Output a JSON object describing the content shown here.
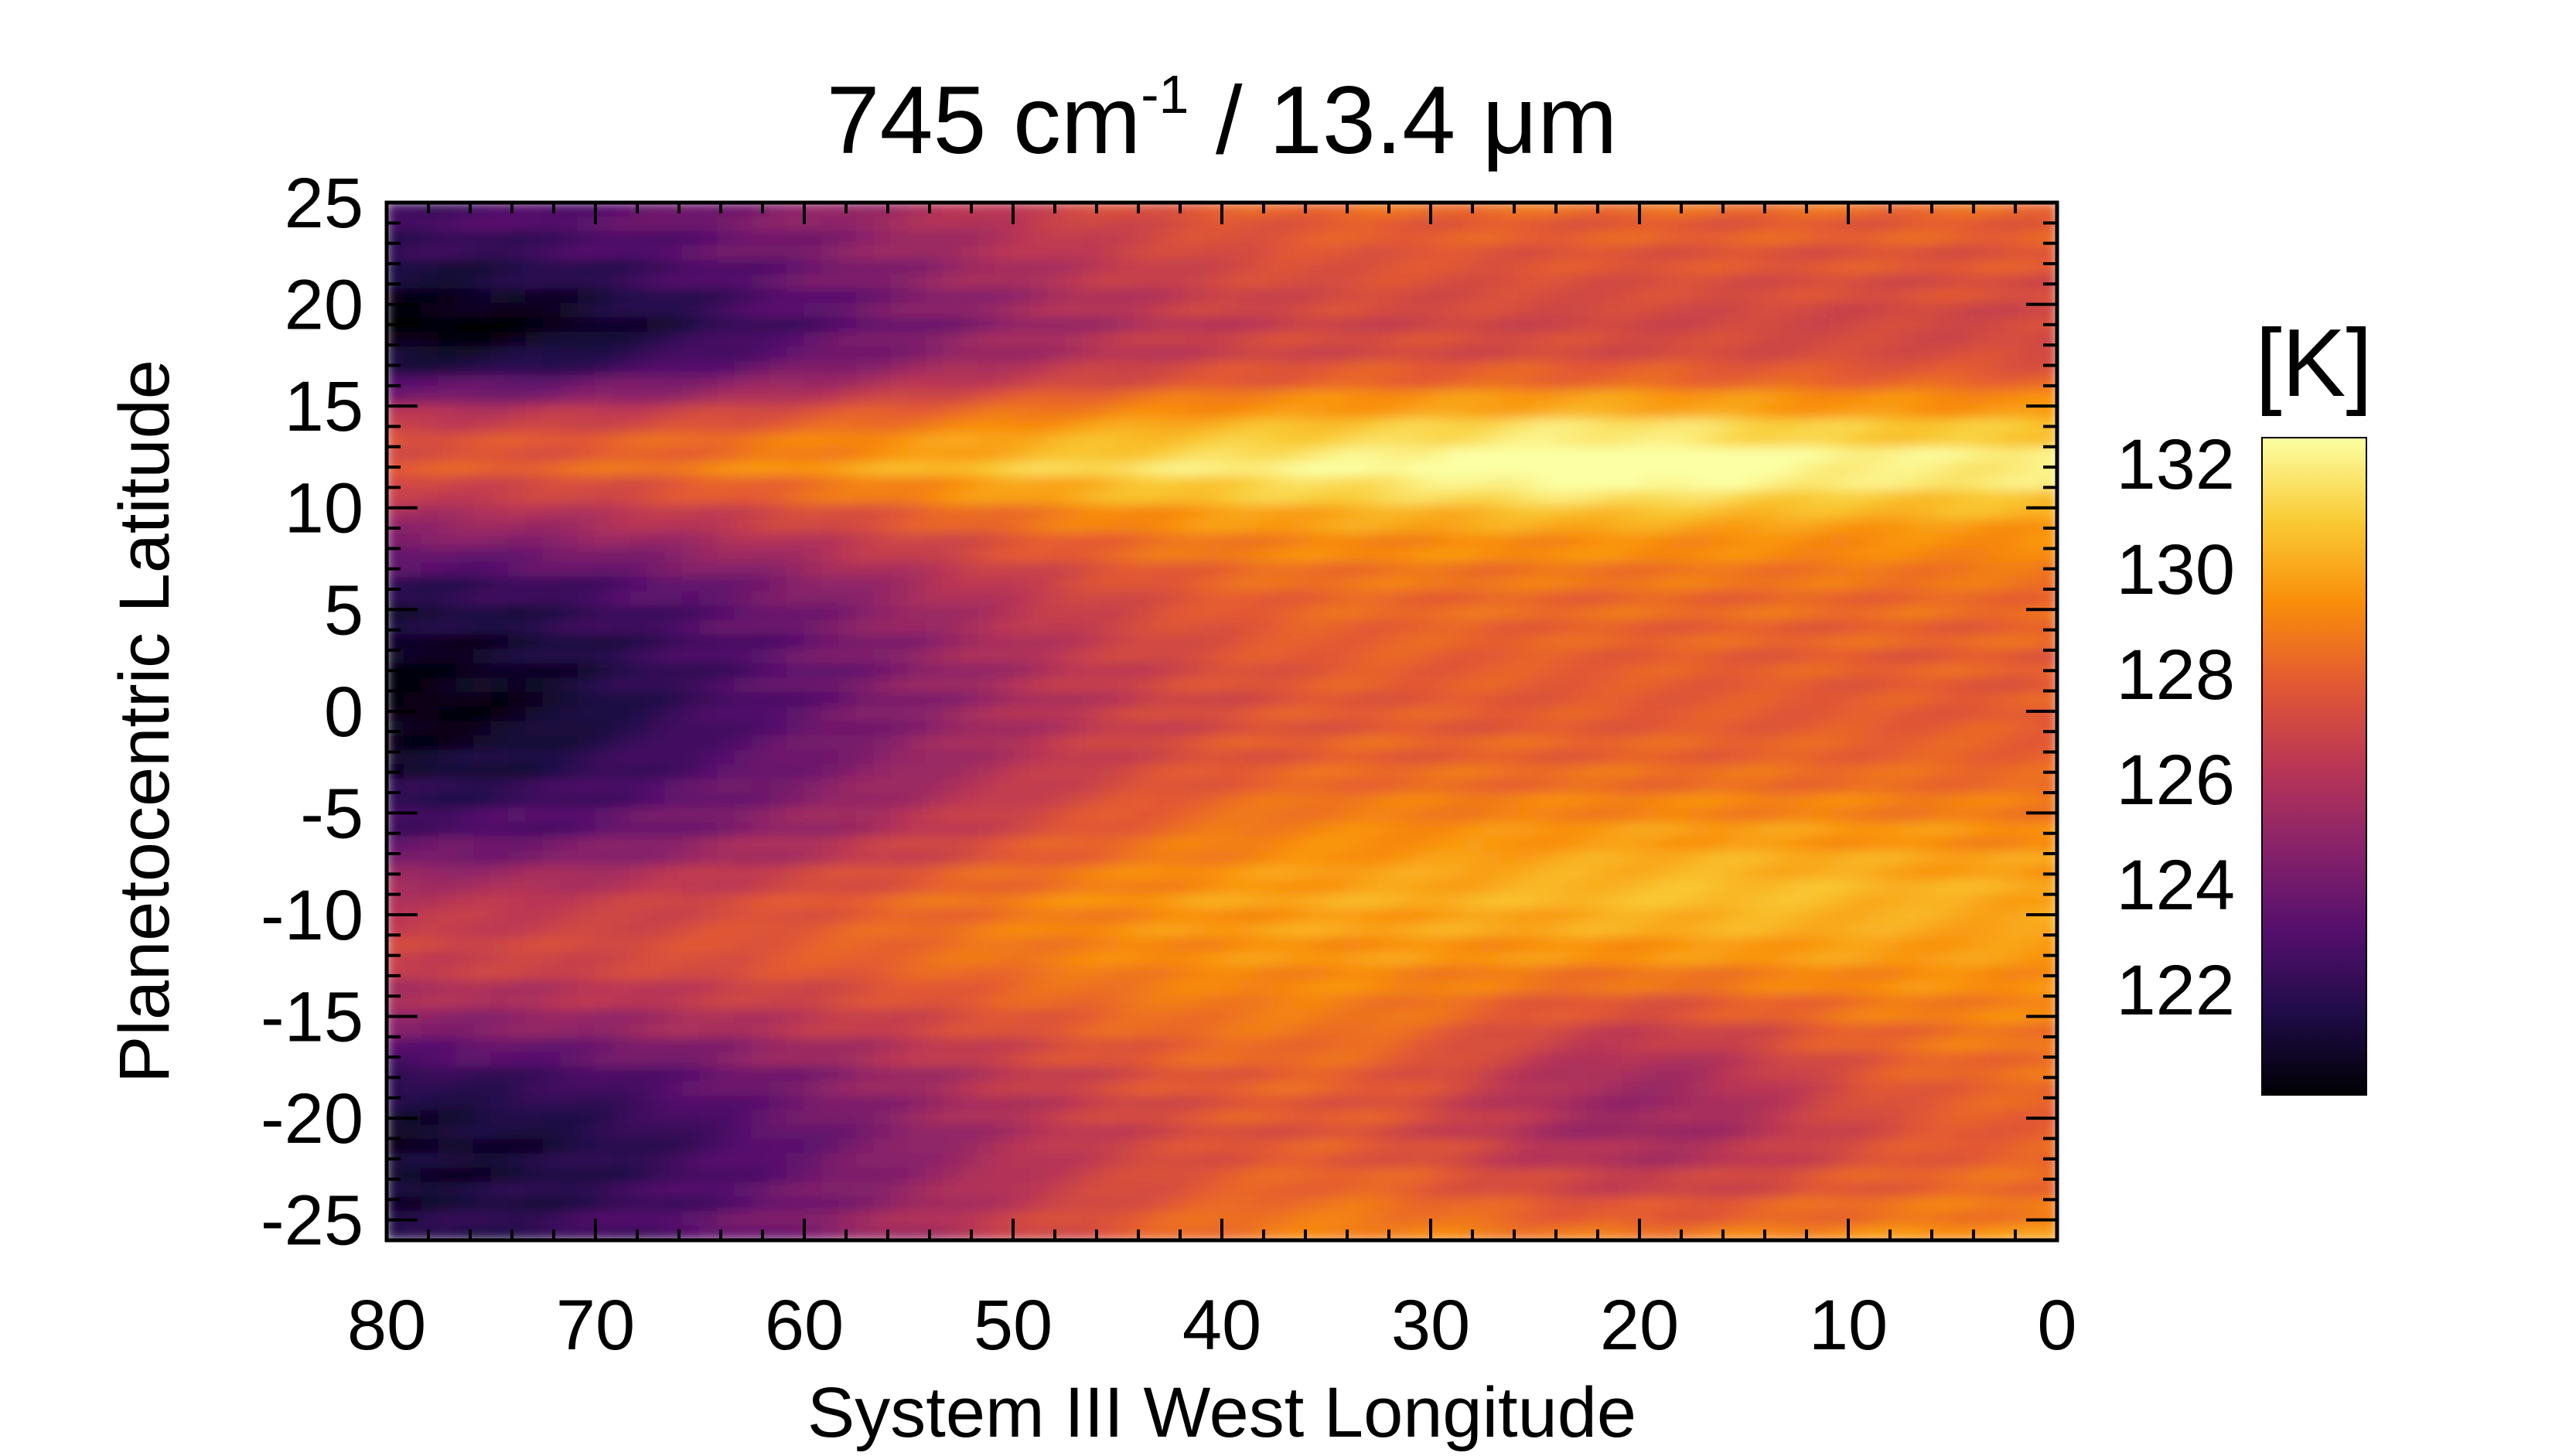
{
  "chart_data": {
    "type": "heatmap",
    "title": {
      "main": "745 cm",
      "superscript": "-1",
      "rest": " / 13.4 μm"
    },
    "xlabel": "System III West Longitude",
    "ylabel": "Planetocentric Latitude",
    "xlim": [
      80,
      0
    ],
    "ylim": [
      -26,
      25
    ],
    "x_ticks": [
      80,
      70,
      60,
      50,
      40,
      30,
      20,
      10,
      0
    ],
    "y_ticks": [
      25,
      20,
      15,
      10,
      5,
      0,
      -5,
      -10,
      -15,
      -20,
      -25
    ],
    "colorbar": {
      "label": "[K]",
      "range": [
        120,
        132.5
      ],
      "ticks": [
        132,
        130,
        128,
        126,
        124,
        122
      ],
      "colormap": "inferno",
      "stops": [
        "#000004",
        "#1f0c48",
        "#550f6d",
        "#88226a",
        "#ba3655",
        "#e35933",
        "#f98e09",
        "#f9cb35",
        "#fcffa4"
      ]
    },
    "latitude_profile": [
      {
        "lat": 25,
        "t_west": 123.0,
        "t_east": 128.2
      },
      {
        "lat": 22,
        "t_west": 121.8,
        "t_east": 127.6
      },
      {
        "lat": 19,
        "t_west": 120.6,
        "t_east": 127.0
      },
      {
        "lat": 17,
        "t_west": 122.0,
        "t_east": 127.4
      },
      {
        "lat": 14,
        "t_west": 127.0,
        "t_east": 130.6
      },
      {
        "lat": 12,
        "t_west": 127.8,
        "t_east": 132.3
      },
      {
        "lat": 9,
        "t_west": 125.0,
        "t_east": 129.6
      },
      {
        "lat": 6,
        "t_west": 122.0,
        "t_east": 128.4
      },
      {
        "lat": 3,
        "t_west": 121.0,
        "t_east": 128.0
      },
      {
        "lat": 0,
        "t_west": 120.8,
        "t_east": 127.8
      },
      {
        "lat": -3,
        "t_west": 121.6,
        "t_east": 128.2
      },
      {
        "lat": -6,
        "t_west": 123.0,
        "t_east": 129.2
      },
      {
        "lat": -9,
        "t_west": 126.0,
        "t_east": 130.0
      },
      {
        "lat": -12,
        "t_west": 127.0,
        "t_east": 129.6
      },
      {
        "lat": -15,
        "t_west": 125.0,
        "t_east": 129.0
      },
      {
        "lat": -18,
        "t_west": 122.0,
        "t_east": 128.4
      },
      {
        "lat": -21,
        "t_west": 120.8,
        "t_east": 128.0
      },
      {
        "lat": -24,
        "t_west": 121.2,
        "t_east": 128.6
      },
      {
        "lat": -26,
        "t_west": 122.0,
        "t_east": 129.4
      }
    ],
    "features": [
      {
        "lon": 20,
        "lat": -19,
        "delta": -3.0,
        "sigma_lon": 7,
        "sigma_lat": 4
      },
      {
        "lon": 22,
        "lat": 12.5,
        "delta": 1.2,
        "sigma_lon": 6,
        "sigma_lat": 2
      },
      {
        "lon": 17,
        "lat": -9,
        "delta": 0.8,
        "sigma_lon": 8,
        "sigma_lat": 3
      },
      {
        "lon": 76,
        "lat": 18.5,
        "delta": -0.8,
        "sigma_lon": 8,
        "sigma_lat": 2
      },
      {
        "lon": 78,
        "lat": 0,
        "delta": -0.6,
        "sigma_lon": 6,
        "sigma_lat": 3
      }
    ]
  }
}
